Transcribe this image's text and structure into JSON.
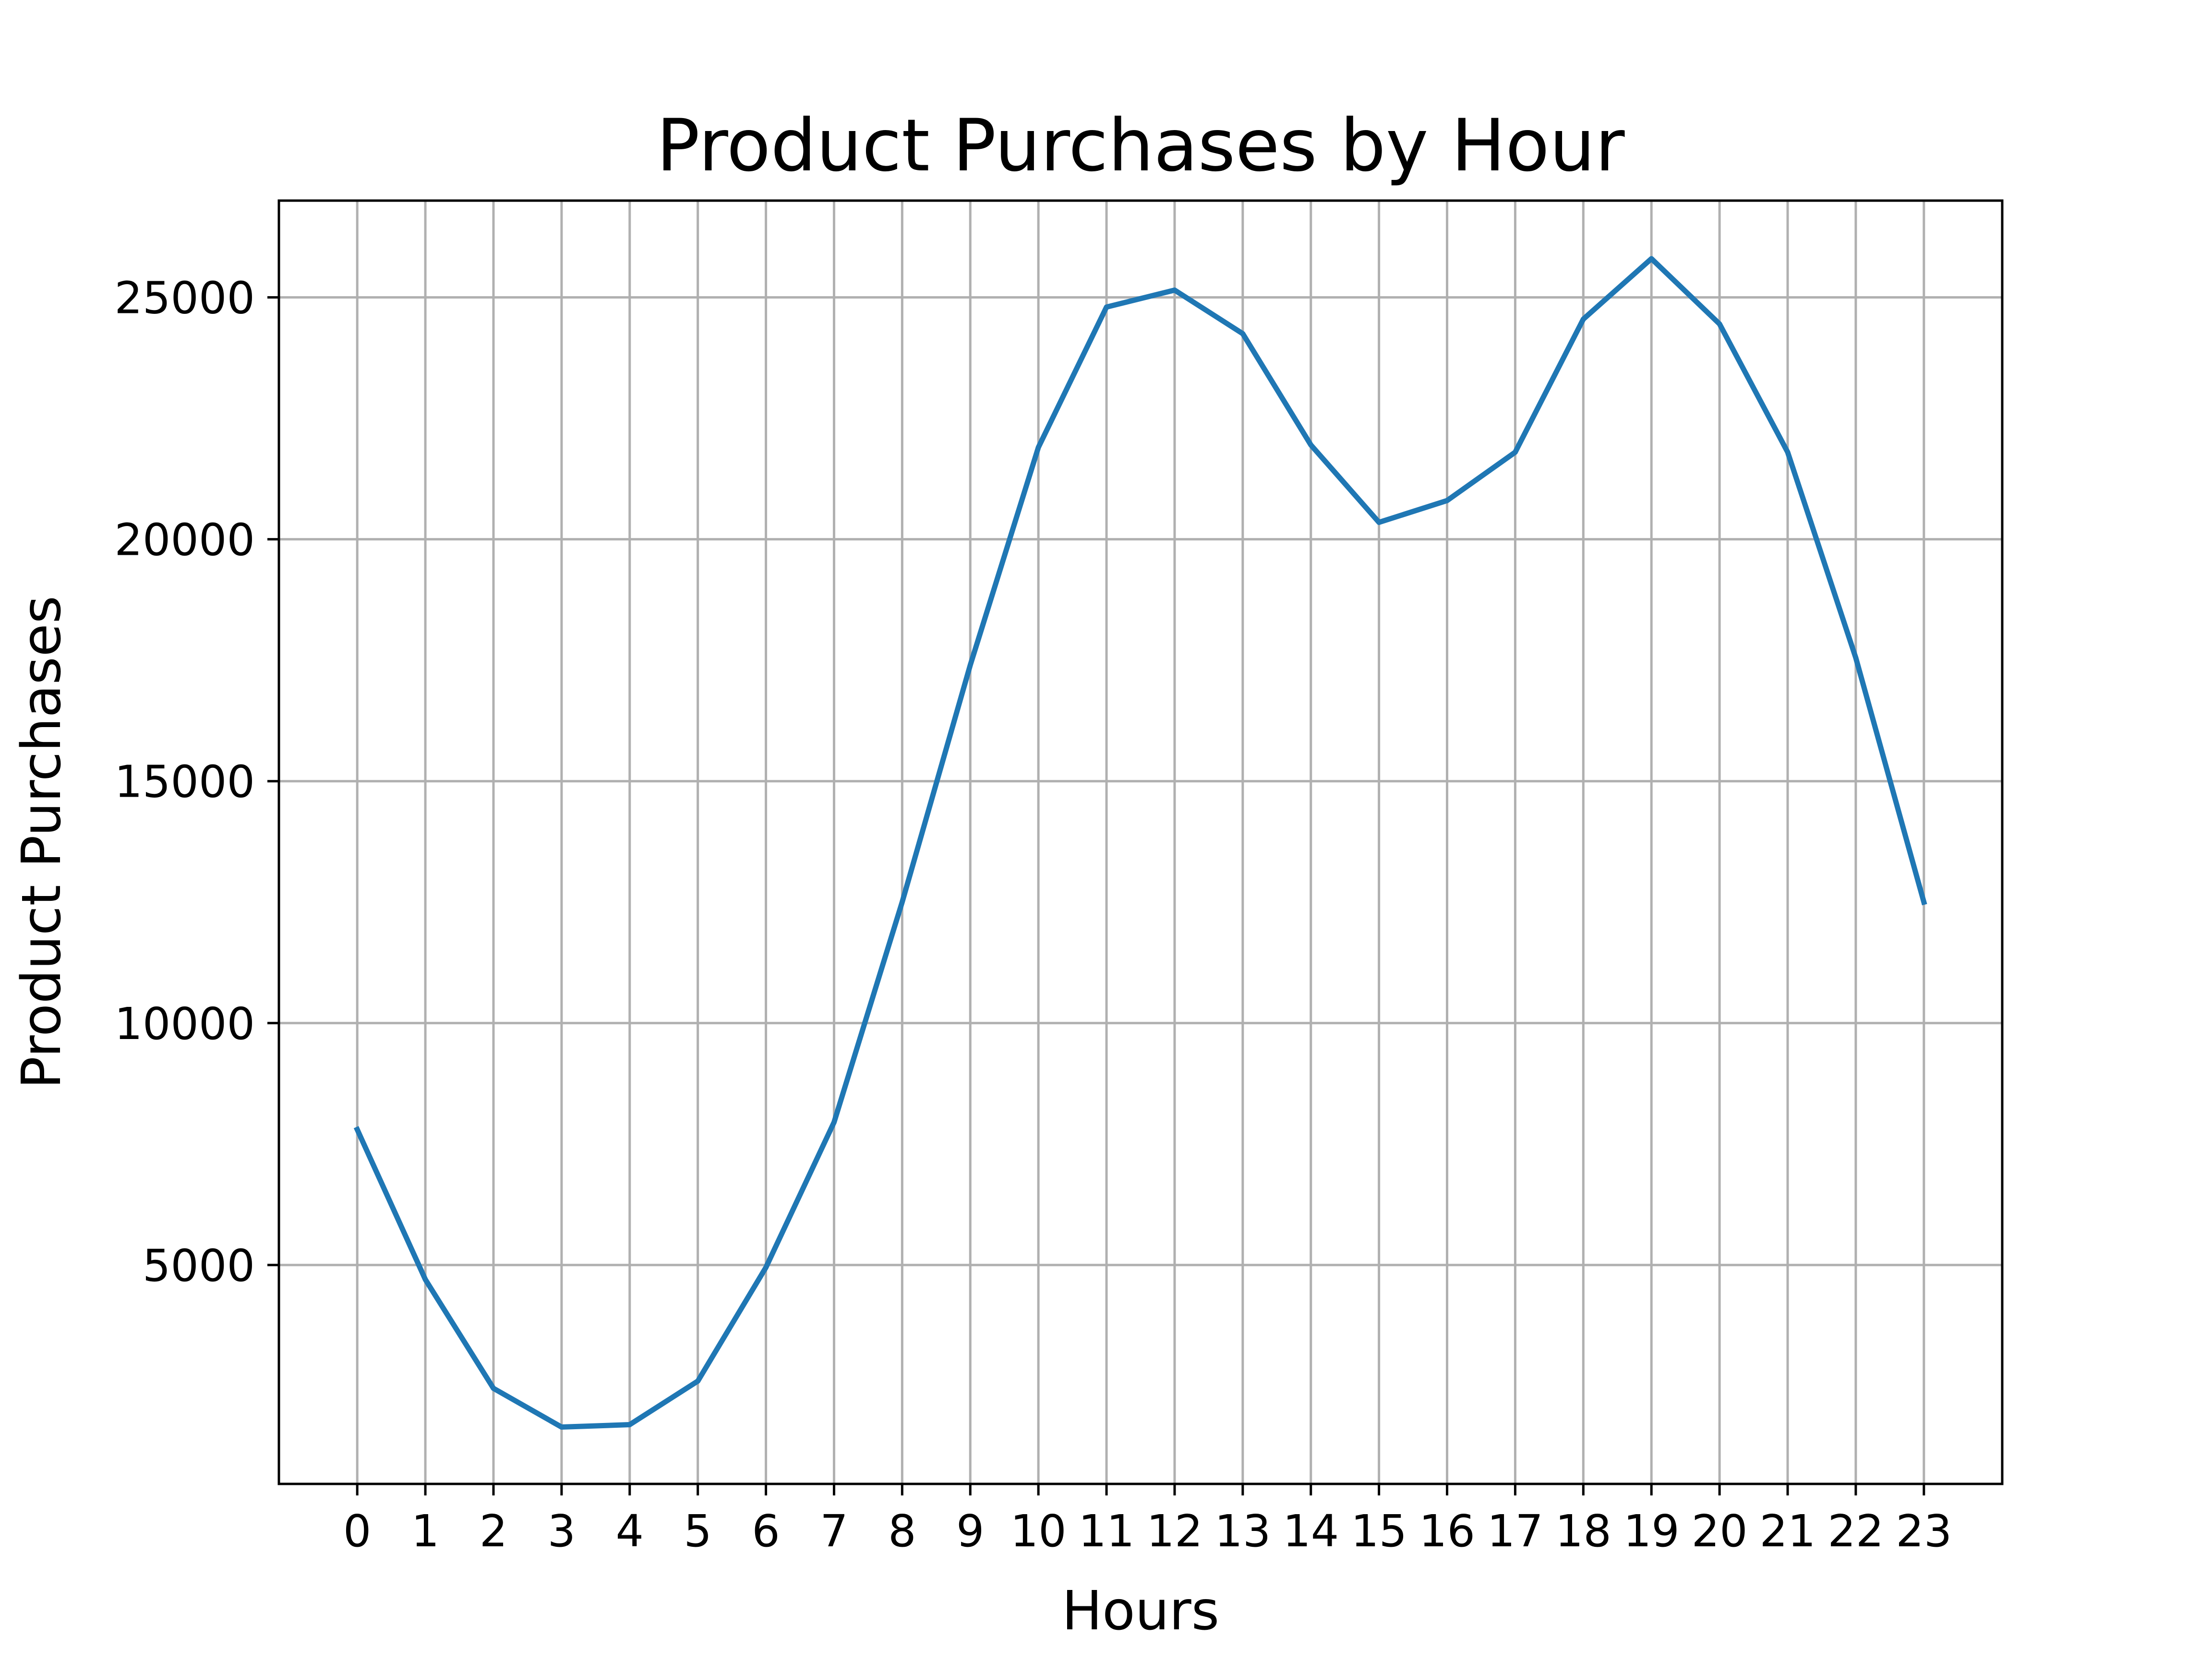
{
  "chart_data": {
    "type": "line",
    "title": "Product Purchases by Hour",
    "xlabel": "Hours",
    "ylabel": "Product Purchases",
    "x": [
      0,
      1,
      2,
      3,
      4,
      5,
      6,
      7,
      8,
      9,
      10,
      11,
      12,
      13,
      14,
      15,
      16,
      17,
      18,
      19,
      20,
      21,
      22,
      23
    ],
    "series": [
      {
        "values": [
          7800,
          4700,
          2450,
          1650,
          1700,
          2600,
          4950,
          7950,
          12500,
          17400,
          21900,
          24800,
          25150,
          24250,
          21950,
          20350,
          20800,
          21800,
          24550,
          25800,
          24450,
          21800,
          17550,
          12500
        ],
        "color": "#1f77b4"
      }
    ],
    "xticks": [
      "0",
      "1",
      "2",
      "3",
      "4",
      "5",
      "6",
      "7",
      "8",
      "9",
      "10",
      "11",
      "12",
      "13",
      "14",
      "15",
      "16",
      "17",
      "18",
      "19",
      "20",
      "21",
      "22",
      "23"
    ],
    "yticks": [
      "5000",
      "10000",
      "15000",
      "20000",
      "25000"
    ],
    "ytick_values": [
      5000,
      10000,
      15000,
      20000,
      25000
    ],
    "xlim": [
      -1.15,
      24.15
    ],
    "ylim": [
      475,
      27000
    ],
    "grid": true,
    "grid_color": "#b0b0b0",
    "line_color": "#1f77b4",
    "legend": "none"
  }
}
